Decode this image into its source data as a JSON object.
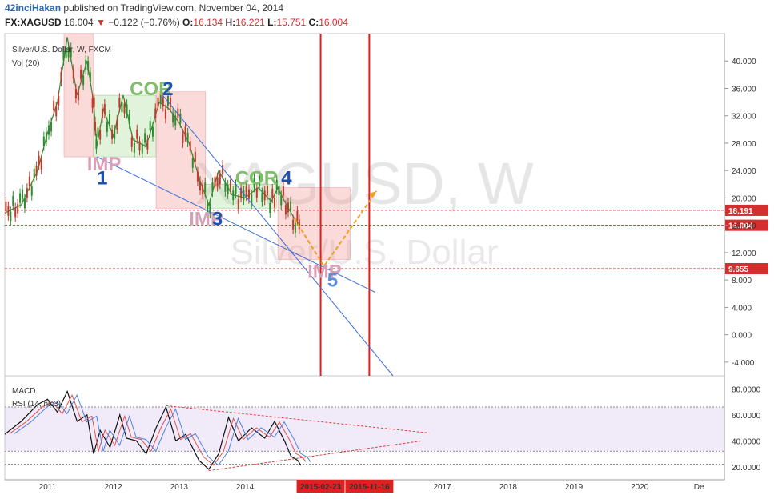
{
  "header": {
    "author": "42inciHakan",
    "published": "published on TradingView.com, November 04, 2014",
    "symbol": "FX:XAGUSD",
    "last": "16.004",
    "change_arrow": "▼",
    "change": "−0.122 (−0.76%)",
    "open_label": "O:",
    "open": "16.134",
    "high_label": "H:",
    "high": "16.221",
    "low_label": "L:",
    "low": "15.751",
    "close_label": "C:",
    "close": "16.004"
  },
  "chart_data": {
    "type": "candlestick",
    "title": "Silver/U.S. Dollar, W, FXCM",
    "watermark": "XAGUSD, W",
    "watermark_sub": "Silver/U.S. Dollar",
    "volume_label": "Vol (20)",
    "x_ticks": [
      "2011",
      "2012",
      "2013",
      "2014",
      "2015-02-23",
      "2015-11-16",
      "2017",
      "2018",
      "2019",
      "2020",
      "De"
    ],
    "highlighted_dates": [
      "2015-02-23",
      "2015-11-16"
    ],
    "price_ylim": [
      -6,
      44
    ],
    "price_ticks": [
      "40.000",
      "36.000",
      "32.000",
      "28.000",
      "24.000",
      "20.000",
      "16.000",
      "12.000",
      "8.000",
      "4.000",
      "0.000",
      "-4.000"
    ],
    "price_levels": [
      {
        "label": "18.191",
        "value": 18.191,
        "color": "#d32f2f"
      },
      {
        "label": "16.004",
        "value": 16.004,
        "color": "#d32f2f"
      },
      {
        "label": "9.655",
        "value": 9.655,
        "color": "#d32f2f"
      }
    ],
    "weekly_close_path": [
      [
        2010.35,
        17.8
      ],
      [
        2010.6,
        19.0
      ],
      [
        2010.85,
        24.0
      ],
      [
        2011.0,
        29.5
      ],
      [
        2011.15,
        34.0
      ],
      [
        2011.3,
        43.5
      ],
      [
        2011.45,
        35.0
      ],
      [
        2011.6,
        40.0
      ],
      [
        2011.7,
        34.0
      ],
      [
        2011.75,
        27.5
      ],
      [
        2011.85,
        33.0
      ],
      [
        2012.0,
        29.0
      ],
      [
        2012.15,
        35.0
      ],
      [
        2012.3,
        28.5
      ],
      [
        2012.5,
        27.5
      ],
      [
        2012.7,
        34.0
      ],
      [
        2012.85,
        33.0
      ],
      [
        2013.0,
        31.0
      ],
      [
        2013.15,
        28.0
      ],
      [
        2013.3,
        23.0
      ],
      [
        2013.45,
        19.0
      ],
      [
        2013.6,
        24.0
      ],
      [
        2013.8,
        20.5
      ],
      [
        2014.0,
        20.0
      ],
      [
        2014.2,
        21.5
      ],
      [
        2014.4,
        19.5
      ],
      [
        2014.5,
        21.5
      ],
      [
        2014.6,
        19.5
      ],
      [
        2014.75,
        17.0
      ],
      [
        2014.84,
        16.0
      ]
    ],
    "annotations": [
      {
        "text": "IMP",
        "x": 2011.6,
        "y": 24.0,
        "color": "#d8a0b8"
      },
      {
        "text": "1",
        "x": 2011.75,
        "y": 22.0,
        "color": "#1f4fb0"
      },
      {
        "text": "COR",
        "x": 2012.25,
        "y": 35.0,
        "color": "#7fbf6a"
      },
      {
        "text": "2",
        "x": 2012.75,
        "y": 35.0,
        "color": "#1f4fb0"
      },
      {
        "text": "IMP",
        "x": 2013.15,
        "y": 16.0,
        "color": "#d8a0b8"
      },
      {
        "text": "3",
        "x": 2013.5,
        "y": 16.0,
        "color": "#1f4fb0"
      },
      {
        "text": "COR",
        "x": 2013.85,
        "y": 22.0,
        "color": "#7fbf6a"
      },
      {
        "text": "4",
        "x": 2014.55,
        "y": 22.0,
        "color": "#1f4fb0"
      },
      {
        "text": "IMP",
        "x": 2014.95,
        "y": 8.3,
        "color": "#d8a0b8"
      },
      {
        "text": "5",
        "x": 2015.25,
        "y": 7.0,
        "color": "#5b8fd6"
      }
    ],
    "zones": [
      {
        "kind": "imp",
        "x0": 2011.25,
        "x1": 2011.7,
        "y0": 26.0,
        "y1": 44.0
      },
      {
        "kind": "cor",
        "x0": 2011.7,
        "x1": 2012.65,
        "y0": 26.0,
        "y1": 35.0
      },
      {
        "kind": "imp",
        "x0": 2012.65,
        "x1": 2013.4,
        "y0": 18.5,
        "y1": 35.5
      },
      {
        "kind": "cor",
        "x0": 2013.4,
        "x1": 2014.48,
        "y0": 18.5,
        "y1": 22.0
      },
      {
        "kind": "imp",
        "x0": 2014.5,
        "x1": 2015.6,
        "y0": 11.0,
        "y1": 21.5
      }
    ],
    "trendlines": [
      {
        "x0": 2011.75,
        "y0": 26.0,
        "x1": 2015.98,
        "y1": 6.2,
        "color": "#3a6fd8"
      },
      {
        "x0": 2012.75,
        "y0": 35.0,
        "x1": 2016.25,
        "y1": -6.0,
        "color": "#3a6fd8"
      }
    ],
    "projection": [
      [
        2014.75,
        17.0
      ],
      [
        2015.2,
        10.0
      ],
      [
        2016.0,
        21.0
      ]
    ],
    "macd_label": "MACD",
    "rsi_label": "RSI (14, hlc3)",
    "rsi_ylim": [
      10,
      90
    ],
    "rsi_ticks": [
      "80.0000",
      "60.0000",
      "40.0000",
      "20.0000"
    ],
    "rsi_band": [
      32,
      66
    ],
    "rsi_path": [
      [
        2010.35,
        45
      ],
      [
        2010.6,
        55
      ],
      [
        2010.85,
        68
      ],
      [
        2011.0,
        72
      ],
      [
        2011.15,
        62
      ],
      [
        2011.3,
        78
      ],
      [
        2011.45,
        55
      ],
      [
        2011.6,
        60
      ],
      [
        2011.7,
        30
      ],
      [
        2011.8,
        48
      ],
      [
        2011.95,
        35
      ],
      [
        2012.1,
        60
      ],
      [
        2012.2,
        42
      ],
      [
        2012.35,
        40
      ],
      [
        2012.5,
        30
      ],
      [
        2012.65,
        50
      ],
      [
        2012.8,
        66
      ],
      [
        2012.95,
        40
      ],
      [
        2013.1,
        45
      ],
      [
        2013.3,
        25
      ],
      [
        2013.45,
        18
      ],
      [
        2013.6,
        30
      ],
      [
        2013.75,
        58
      ],
      [
        2013.9,
        40
      ],
      [
        2014.1,
        50
      ],
      [
        2014.3,
        42
      ],
      [
        2014.45,
        55
      ],
      [
        2014.6,
        40
      ],
      [
        2014.7,
        28
      ],
      [
        2014.8,
        25
      ],
      [
        2014.85,
        21
      ]
    ]
  }
}
